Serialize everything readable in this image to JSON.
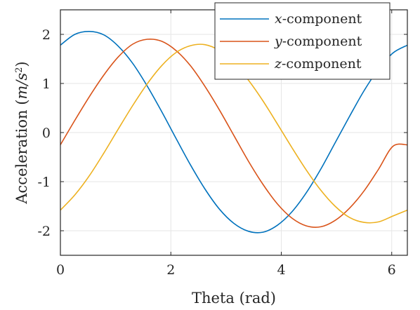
{
  "chart_data": {
    "type": "line",
    "title": "",
    "xlabel": "Theta (rad)",
    "ylabel_prefix": "Acceleration (",
    "ylabel_unit": "m/s",
    "ylabel_exp": "2",
    "ylabel_suffix": ")",
    "xlim": [
      0,
      6.2832
    ],
    "ylim": [
      -2.5,
      2.5
    ],
    "xticks": [
      0,
      2,
      4,
      6
    ],
    "yticks": [
      2,
      1,
      0,
      -1,
      -2
    ],
    "xtick_labels": [
      "0",
      "2",
      "4",
      "6"
    ],
    "ytick_labels": [
      "2",
      "1",
      "0",
      "-1",
      "-2"
    ],
    "grid": true,
    "legend_position": "top-right",
    "series": [
      {
        "name": "x-component",
        "legend_var": "x",
        "legend_suffix": "-component",
        "color": "#0072BD",
        "x": [
          0,
          0.2618,
          0.5236,
          0.7854,
          1.0472,
          1.309,
          1.5708,
          1.8326,
          2.0944,
          2.3562,
          2.618,
          2.8798,
          3.1416,
          3.4034,
          3.6652,
          3.927,
          4.1888,
          4.4506,
          4.7124,
          4.9742,
          5.236,
          5.4978,
          5.7596,
          6.0214,
          6.2832
        ],
        "values": [
          1.78,
          2.0,
          2.06,
          1.99,
          1.76,
          1.41,
          0.95,
          0.43,
          -0.12,
          -0.66,
          -1.15,
          -1.56,
          -1.85,
          -2.01,
          -2.03,
          -1.89,
          -1.62,
          -1.23,
          -0.75,
          -0.21,
          0.33,
          0.85,
          1.29,
          1.62,
          1.78
        ]
      },
      {
        "name": "y-component",
        "legend_var": "y",
        "legend_suffix": "-component",
        "color": "#D95319",
        "x": [
          0,
          0.2618,
          0.5236,
          0.7854,
          1.0472,
          1.309,
          1.5708,
          1.8326,
          2.0944,
          2.3562,
          2.618,
          2.8798,
          3.1416,
          3.4034,
          3.6652,
          3.927,
          4.1888,
          4.4506,
          4.7124,
          4.9742,
          5.236,
          5.4978,
          5.7596,
          6.0214,
          6.2832
        ],
        "values": [
          -0.25,
          0.25,
          0.73,
          1.17,
          1.54,
          1.8,
          1.9,
          1.86,
          1.67,
          1.36,
          0.94,
          0.46,
          -0.06,
          -0.58,
          -1.05,
          -1.45,
          -1.74,
          -1.9,
          -1.92,
          -1.79,
          -1.54,
          -1.19,
          -0.75,
          -0.28,
          -0.25
        ]
      },
      {
        "name": "z-component",
        "legend_var": "z",
        "legend_suffix": "-component",
        "color": "#EDB120",
        "x": [
          0,
          0.2618,
          0.5236,
          0.7854,
          1.0472,
          1.309,
          1.5708,
          1.8326,
          2.0944,
          2.3562,
          2.618,
          2.8798,
          3.1416,
          3.4034,
          3.6652,
          3.927,
          4.1888,
          4.4506,
          4.7124,
          4.9742,
          5.236,
          5.4978,
          5.7596,
          6.0214,
          6.2832
        ],
        "values": [
          -1.58,
          -1.27,
          -0.88,
          -0.42,
          0.07,
          0.55,
          0.99,
          1.36,
          1.63,
          1.77,
          1.79,
          1.67,
          1.42,
          1.07,
          0.65,
          0.18,
          -0.3,
          -0.76,
          -1.17,
          -1.5,
          -1.73,
          -1.83,
          -1.82,
          -1.7,
          -1.58
        ]
      }
    ]
  }
}
